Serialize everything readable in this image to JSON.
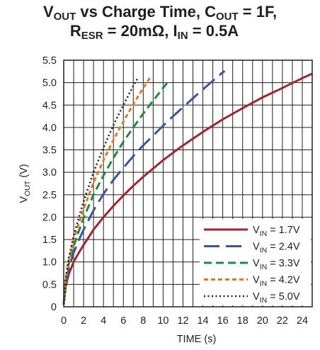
{
  "title": {
    "line1": {
      "part1": "V",
      "sub1": "OUT",
      "part2": " vs Charge Time, C",
      "sub2": "OUT",
      "part3": " = 1F,"
    },
    "line2": {
      "part1": "R",
      "sub1": "ESR",
      "part2": " = 20mΩ, I",
      "sub2": "IN",
      "part3": " = 0.5A"
    }
  },
  "colors": {
    "axis": "#231f20",
    "grid": "#231f20",
    "legend_box": "#231f20"
  },
  "chart_data": {
    "type": "line",
    "xlabel": "TIME (s)",
    "ylabel": {
      "main": "V",
      "sub": "OUT",
      "rest": " (V)"
    },
    "xlim": [
      0,
      25
    ],
    "ylim": [
      0,
      5.5
    ],
    "grid": true,
    "legend_position": "bottom-right",
    "xticks": [
      0,
      2,
      4,
      6,
      8,
      10,
      12,
      14,
      16,
      18,
      20,
      22,
      24
    ],
    "yticks": [
      0,
      0.5,
      1.0,
      1.5,
      2.0,
      2.5,
      3.0,
      3.5,
      4.0,
      4.5,
      5.0,
      5.5
    ],
    "ytick_labels": [
      "0",
      "0.5",
      "1.0",
      "1.5",
      "2.0",
      "2.5",
      "3.0",
      "3.5",
      "4.0",
      "4.5",
      "5.0",
      "5.5"
    ],
    "series": [
      {
        "name": {
          "main": "V",
          "sub": "IN",
          "rest": " = 1.7V"
        },
        "color": "#a1252f",
        "dash": "solid",
        "x": [
          0,
          0.2,
          0.5,
          1,
          1.5,
          2,
          3,
          4,
          5,
          6,
          7,
          8,
          10,
          12,
          14,
          16,
          18,
          20,
          22,
          24,
          25
        ],
        "y": [
          0.05,
          0.45,
          0.72,
          1.0,
          1.2,
          1.38,
          1.72,
          2.0,
          2.25,
          2.48,
          2.7,
          2.9,
          3.27,
          3.6,
          3.9,
          4.18,
          4.43,
          4.67,
          4.88,
          5.1,
          5.2
        ]
      },
      {
        "name": {
          "main": "V",
          "sub": "IN",
          "rest": " = 2.4V"
        },
        "color": "#3a54a4",
        "dash": "longdash",
        "x": [
          0,
          0.2,
          0.5,
          1,
          1.5,
          2,
          3,
          4,
          5,
          6,
          7,
          8,
          9,
          10,
          11,
          12,
          13,
          14,
          15,
          16,
          16.2
        ],
        "y": [
          0.05,
          0.5,
          0.85,
          1.2,
          1.48,
          1.72,
          2.15,
          2.52,
          2.83,
          3.1,
          3.36,
          3.6,
          3.82,
          4.04,
          4.25,
          4.45,
          4.65,
          4.85,
          5.04,
          5.23,
          5.26
        ]
      },
      {
        "name": {
          "main": "V",
          "sub": "IN",
          "rest": " = 3.3V"
        },
        "color": "#1e8b3f",
        "dash": "dash",
        "x": [
          0,
          0.2,
          0.5,
          1,
          1.5,
          2,
          3,
          4,
          5,
          6,
          7,
          8,
          9,
          10,
          10.5
        ],
        "y": [
          0.05,
          0.55,
          0.95,
          1.35,
          1.68,
          1.98,
          2.5,
          2.93,
          3.32,
          3.68,
          4.0,
          4.31,
          4.6,
          4.88,
          5.02
        ]
      },
      {
        "name": {
          "main": "V",
          "sub": "IN",
          "rest": " = 4.2V"
        },
        "color": "#e0782b",
        "dash": "shortdash",
        "x": [
          0,
          0.2,
          0.5,
          1,
          1.5,
          2,
          3,
          4,
          5,
          6,
          7,
          8,
          8.8
        ],
        "y": [
          0.05,
          0.6,
          1.02,
          1.48,
          1.85,
          2.18,
          2.77,
          3.27,
          3.72,
          4.13,
          4.52,
          4.88,
          5.15
        ]
      },
      {
        "name": {
          "main": "V",
          "sub": "IN",
          "rest": " = 5.0V"
        },
        "color": "#231f20",
        "dash": "dot",
        "x": [
          0,
          0.2,
          0.5,
          1,
          1.5,
          2,
          3,
          4,
          5,
          6,
          7,
          7.5
        ],
        "y": [
          0.05,
          0.63,
          1.08,
          1.58,
          1.98,
          2.35,
          3.0,
          3.55,
          4.05,
          4.5,
          4.93,
          5.12
        ]
      }
    ]
  }
}
